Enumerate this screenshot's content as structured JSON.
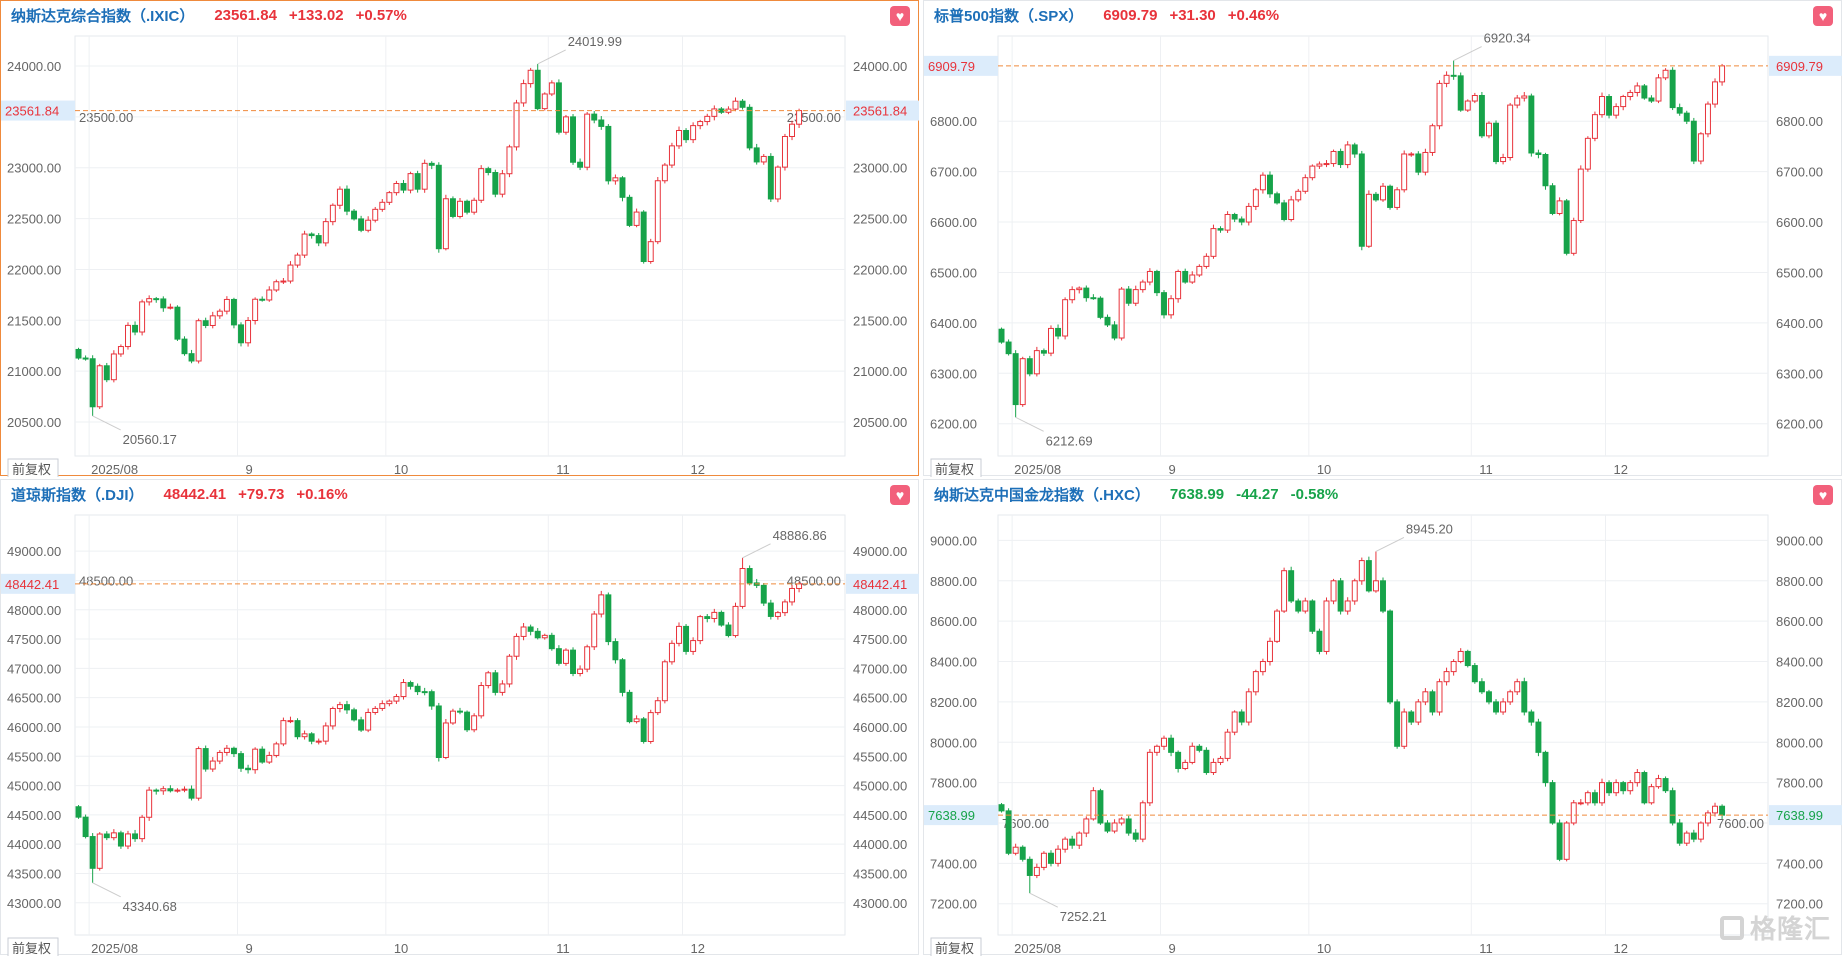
{
  "adjust_button": "前复权",
  "watermark": "格隆汇",
  "colors": {
    "up": "#e8333b",
    "down": "#17a34a",
    "title": "#1d6fb8",
    "refline": "#ef8a3c",
    "pricebox": "#dcecfb",
    "grid": "#eef0f3"
  },
  "month_labels": [
    {
      "label": "2025/08",
      "index": 2
    },
    {
      "label": "9",
      "index": 23
    },
    {
      "label": "10",
      "index": 44
    },
    {
      "label": "11",
      "index": 67
    },
    {
      "label": "12",
      "index": 86
    }
  ],
  "panels": [
    {
      "id": "ixic",
      "title": "纳斯达克综合指数（.IXIC）",
      "price": "23561.84",
      "change": "+133.02",
      "pct": "+0.57%",
      "direction": "up",
      "active": true,
      "price_label": "23561.84",
      "price_value": 23561.84,
      "chart_data": {
        "type": "candlestick",
        "ylim": [
          20166,
          24295
        ],
        "ticks": [
          "20500.00",
          "21000.00",
          "21500.00",
          "22000.00",
          "22500.00",
          "23000.00",
          "23500.00",
          "24000.00"
        ],
        "high": {
          "index": 65,
          "label": "24019.99",
          "value": 24019.99
        },
        "low": {
          "index": 2,
          "label": "20560.17",
          "value": 20560.17
        },
        "closes": [
          21129,
          21122,
          20650,
          21053,
          20916,
          21169,
          21242,
          21450,
          21385,
          21681,
          21713,
          21710,
          21623,
          21629,
          21315,
          21172,
          21100,
          21496,
          21449,
          21544,
          21590,
          21705,
          21455,
          21279,
          21498,
          21707,
          21700,
          21798,
          21879,
          21886,
          22043,
          22141,
          22348,
          22333,
          22261,
          22470,
          22631,
          22789,
          22573,
          22497,
          22385,
          22484,
          22591,
          22660,
          22755,
          22845,
          22780,
          22942,
          22789,
          23043,
          23024,
          22204,
          22695,
          22521,
          22670,
          22563,
          22680,
          22991,
          22953,
          22740,
          22941,
          23205,
          23637,
          23827,
          23958,
          23581,
          23725,
          23834,
          23349,
          23500,
          23054,
          23005,
          23527,
          23469,
          23406,
          22871,
          22901,
          22709,
          22433,
          22564,
          22078,
          22273,
          22872,
          23026,
          23215,
          23366,
          23276,
          23414,
          23454,
          23505,
          23578,
          23545,
          23576,
          23654,
          23594,
          23195,
          23057,
          23111,
          22693,
          23006,
          23307,
          23428,
          23561.84
        ]
      }
    },
    {
      "id": "spx",
      "title": "标普500指数（.SPX）",
      "price": "6909.79",
      "change": "+31.30",
      "pct": "+0.46%",
      "direction": "up",
      "active": false,
      "price_label": "6909.79",
      "price_value": 6909.79,
      "chart_data": {
        "type": "candlestick",
        "ylim": [
          6136,
          6969
        ],
        "ticks": [
          "6200.00",
          "6300.00",
          "6400.00",
          "6500.00",
          "6600.00",
          "6700.00",
          "6800.00"
        ],
        "high": {
          "index": 64,
          "label": "6920.34",
          "value": 6920.34
        },
        "low": {
          "index": 2,
          "label": "6212.69",
          "value": 6212.69
        },
        "closes": [
          6362,
          6339,
          6238,
          6329,
          6299,
          6345,
          6340,
          6389,
          6374,
          6446,
          6466,
          6469,
          6450,
          6449,
          6411,
          6396,
          6370,
          6467,
          6439,
          6466,
          6481,
          6502,
          6460,
          6416,
          6448,
          6502,
          6481,
          6495,
          6512,
          6532,
          6587,
          6584,
          6615,
          6606,
          6600,
          6631,
          6664,
          6693,
          6656,
          6638,
          6605,
          6644,
          6661,
          6688,
          6711,
          6715,
          6716,
          6740,
          6714,
          6753,
          6735,
          6552,
          6655,
          6644,
          6671,
          6629,
          6664,
          6735,
          6735,
          6699,
          6738,
          6791,
          6875,
          6891,
          6890,
          6822,
          6840,
          6851,
          6771,
          6796,
          6720,
          6728,
          6832,
          6846,
          6850,
          6737,
          6734,
          6672,
          6617,
          6642,
          6538,
          6603,
          6705,
          6766,
          6813,
          6849,
          6812,
          6829,
          6849,
          6857,
          6870,
          6846,
          6840,
          6886,
          6901,
          6827,
          6816,
          6800,
          6721,
          6775,
          6834,
          6878,
          6909.79
        ]
      }
    },
    {
      "id": "dji",
      "title": "道琼斯指数（.DJI）",
      "price": "48442.41",
      "change": "+79.73",
      "pct": "+0.16%",
      "direction": "up",
      "active": false,
      "price_label": "48442.41",
      "price_value": 48442.41,
      "chart_data": {
        "type": "candlestick",
        "ylim": [
          42450,
          49617
        ],
        "ticks": [
          "43000.00",
          "43500.00",
          "44000.00",
          "44500.00",
          "45000.00",
          "45500.00",
          "46000.00",
          "46500.00",
          "47000.00",
          "47500.00",
          "48000.00",
          "48500.00",
          "49000.00"
        ],
        "high": {
          "index": 94,
          "label": "48886.86",
          "value": 48886.86
        },
        "low": {
          "index": 2,
          "label": "43340.68",
          "value": 43340.68
        },
        "closes": [
          44461,
          44130,
          43588,
          44173,
          44111,
          44193,
          43968,
          44175,
          44094,
          44459,
          44922,
          44911,
          44946,
          44911,
          44922,
          44938,
          44785,
          45631,
          45282,
          45418,
          45565,
          45636,
          45545,
          45295,
          45271,
          45621,
          45401,
          45514,
          45711,
          46108,
          46108,
          45834,
          45883,
          45757,
          45758,
          46018,
          46315,
          46381,
          46292,
          46121,
          45947,
          46247,
          46316,
          46398,
          46441,
          46519,
          46758,
          46694,
          46603,
          46602,
          46358,
          45479,
          46068,
          46270,
          46253,
          45952,
          46190,
          46707,
          46924,
          46590,
          46734,
          47207,
          47545,
          47706,
          47632,
          47522,
          47563,
          47336,
          47085,
          47311,
          46912,
          46987,
          47368,
          47927,
          48254,
          47457,
          47147,
          46590,
          46091,
          46138,
          45752,
          46245,
          46448,
          47112,
          47427,
          47716,
          47289,
          47474,
          47883,
          47851,
          47955,
          47739,
          47560,
          48057,
          48704,
          48458,
          48416,
          48114,
          47886,
          47951,
          48134,
          48363,
          48442.41
        ]
      }
    },
    {
      "id": "hxc",
      "title": "纳斯达克中国金龙指数（.HXC）",
      "price": "7638.99",
      "change": "-44.27",
      "pct": "-0.58%",
      "direction": "down",
      "active": false,
      "price_label": "7638.99",
      "price_value": 7638.99,
      "chart_data": {
        "type": "candlestick",
        "ylim": [
          7045,
          9126
        ],
        "ticks": [
          "7200.00",
          "7400.00",
          "7600.00",
          "7800.00",
          "8000.00",
          "8200.00",
          "8400.00",
          "8600.00",
          "8800.00",
          "9000.00"
        ],
        "high": {
          "index": 53,
          "label": "8945.20",
          "value": 8945.2
        },
        "low": {
          "index": 4,
          "label": "7252.21",
          "value": 7252.21
        },
        "closes": [
          7660,
          7450,
          7480,
          7420,
          7340,
          7380,
          7450,
          7400,
          7470,
          7520,
          7490,
          7550,
          7620,
          7760,
          7600,
          7560,
          7600,
          7620,
          7550,
          7520,
          7700,
          7950,
          7980,
          8020,
          7950,
          7870,
          7900,
          7980,
          7960,
          7850,
          7900,
          7920,
          8050,
          8150,
          8100,
          8250,
          8350,
          8400,
          8500,
          8650,
          8850,
          8700,
          8650,
          8700,
          8550,
          8450,
          8700,
          8800,
          8650,
          8700,
          8800,
          8900,
          8750,
          8800,
          8650,
          8200,
          7980,
          8150,
          8100,
          8200,
          8250,
          8150,
          8300,
          8350,
          8400,
          8450,
          8380,
          8300,
          8250,
          8200,
          8150,
          8200,
          8250,
          8300,
          8150,
          8100,
          7950,
          7800,
          7600,
          7420,
          7600,
          7700,
          7700,
          7750,
          7700,
          7800,
          7750,
          7800,
          7760,
          7800,
          7850,
          7700,
          7780,
          7820,
          7760,
          7600,
          7500,
          7550,
          7520,
          7600,
          7650,
          7683,
          7638.99
        ]
      }
    }
  ]
}
